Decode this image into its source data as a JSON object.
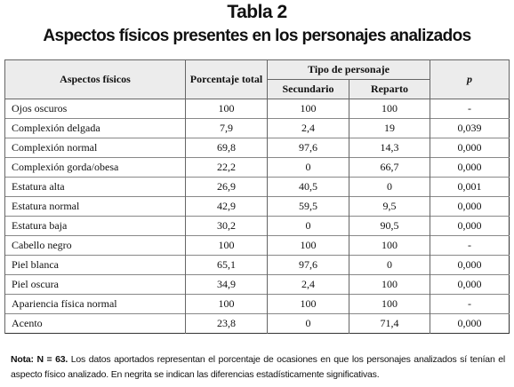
{
  "header": {
    "title": "Tabla 2",
    "subtitle": "Aspectos físicos presentes en los personajes analizados"
  },
  "table": {
    "columns": [
      "Aspectos físicos",
      "Porcentaje total",
      "Tipo de personaje",
      "p"
    ],
    "subcolumns": [
      "Secundario",
      "Reparto"
    ],
    "rows": [
      [
        "Ojos oscuros",
        "100",
        "100",
        "100",
        "-"
      ],
      [
        "Complexión delgada",
        "7,9",
        "2,4",
        "19",
        "0,039"
      ],
      [
        "Complexión normal",
        "69,8",
        "97,6",
        "14,3",
        "0,000"
      ],
      [
        "Complexión gorda/obesa",
        "22,2",
        "0",
        "66,7",
        "0,000"
      ],
      [
        "Estatura alta",
        "26,9",
        "40,5",
        "0",
        "0,001"
      ],
      [
        "Estatura normal",
        "42,9",
        "59,5",
        "9,5",
        "0,000"
      ],
      [
        "Estatura baja",
        "30,2",
        "0",
        "90,5",
        "0,000"
      ],
      [
        "Cabello negro",
        "100",
        "100",
        "100",
        "-"
      ],
      [
        "Piel blanca",
        "65,1",
        "97,6",
        "0",
        "0,000"
      ],
      [
        "Piel oscura",
        "34,9",
        "2,4",
        "100",
        "0,000"
      ],
      [
        "Apariencia física normal",
        "100",
        "100",
        "100",
        "-"
      ],
      [
        "Acento",
        "23,8",
        "0",
        "71,4",
        "0,000"
      ]
    ]
  },
  "note": {
    "label": "Nota: N = 63.",
    "text": "Los datos aportados representan el porcentaje de ocasiones en que los personajes analizados sí tenían el aspecto físico analizado. En negrita se indican las diferencias estadísticamente significativas."
  }
}
